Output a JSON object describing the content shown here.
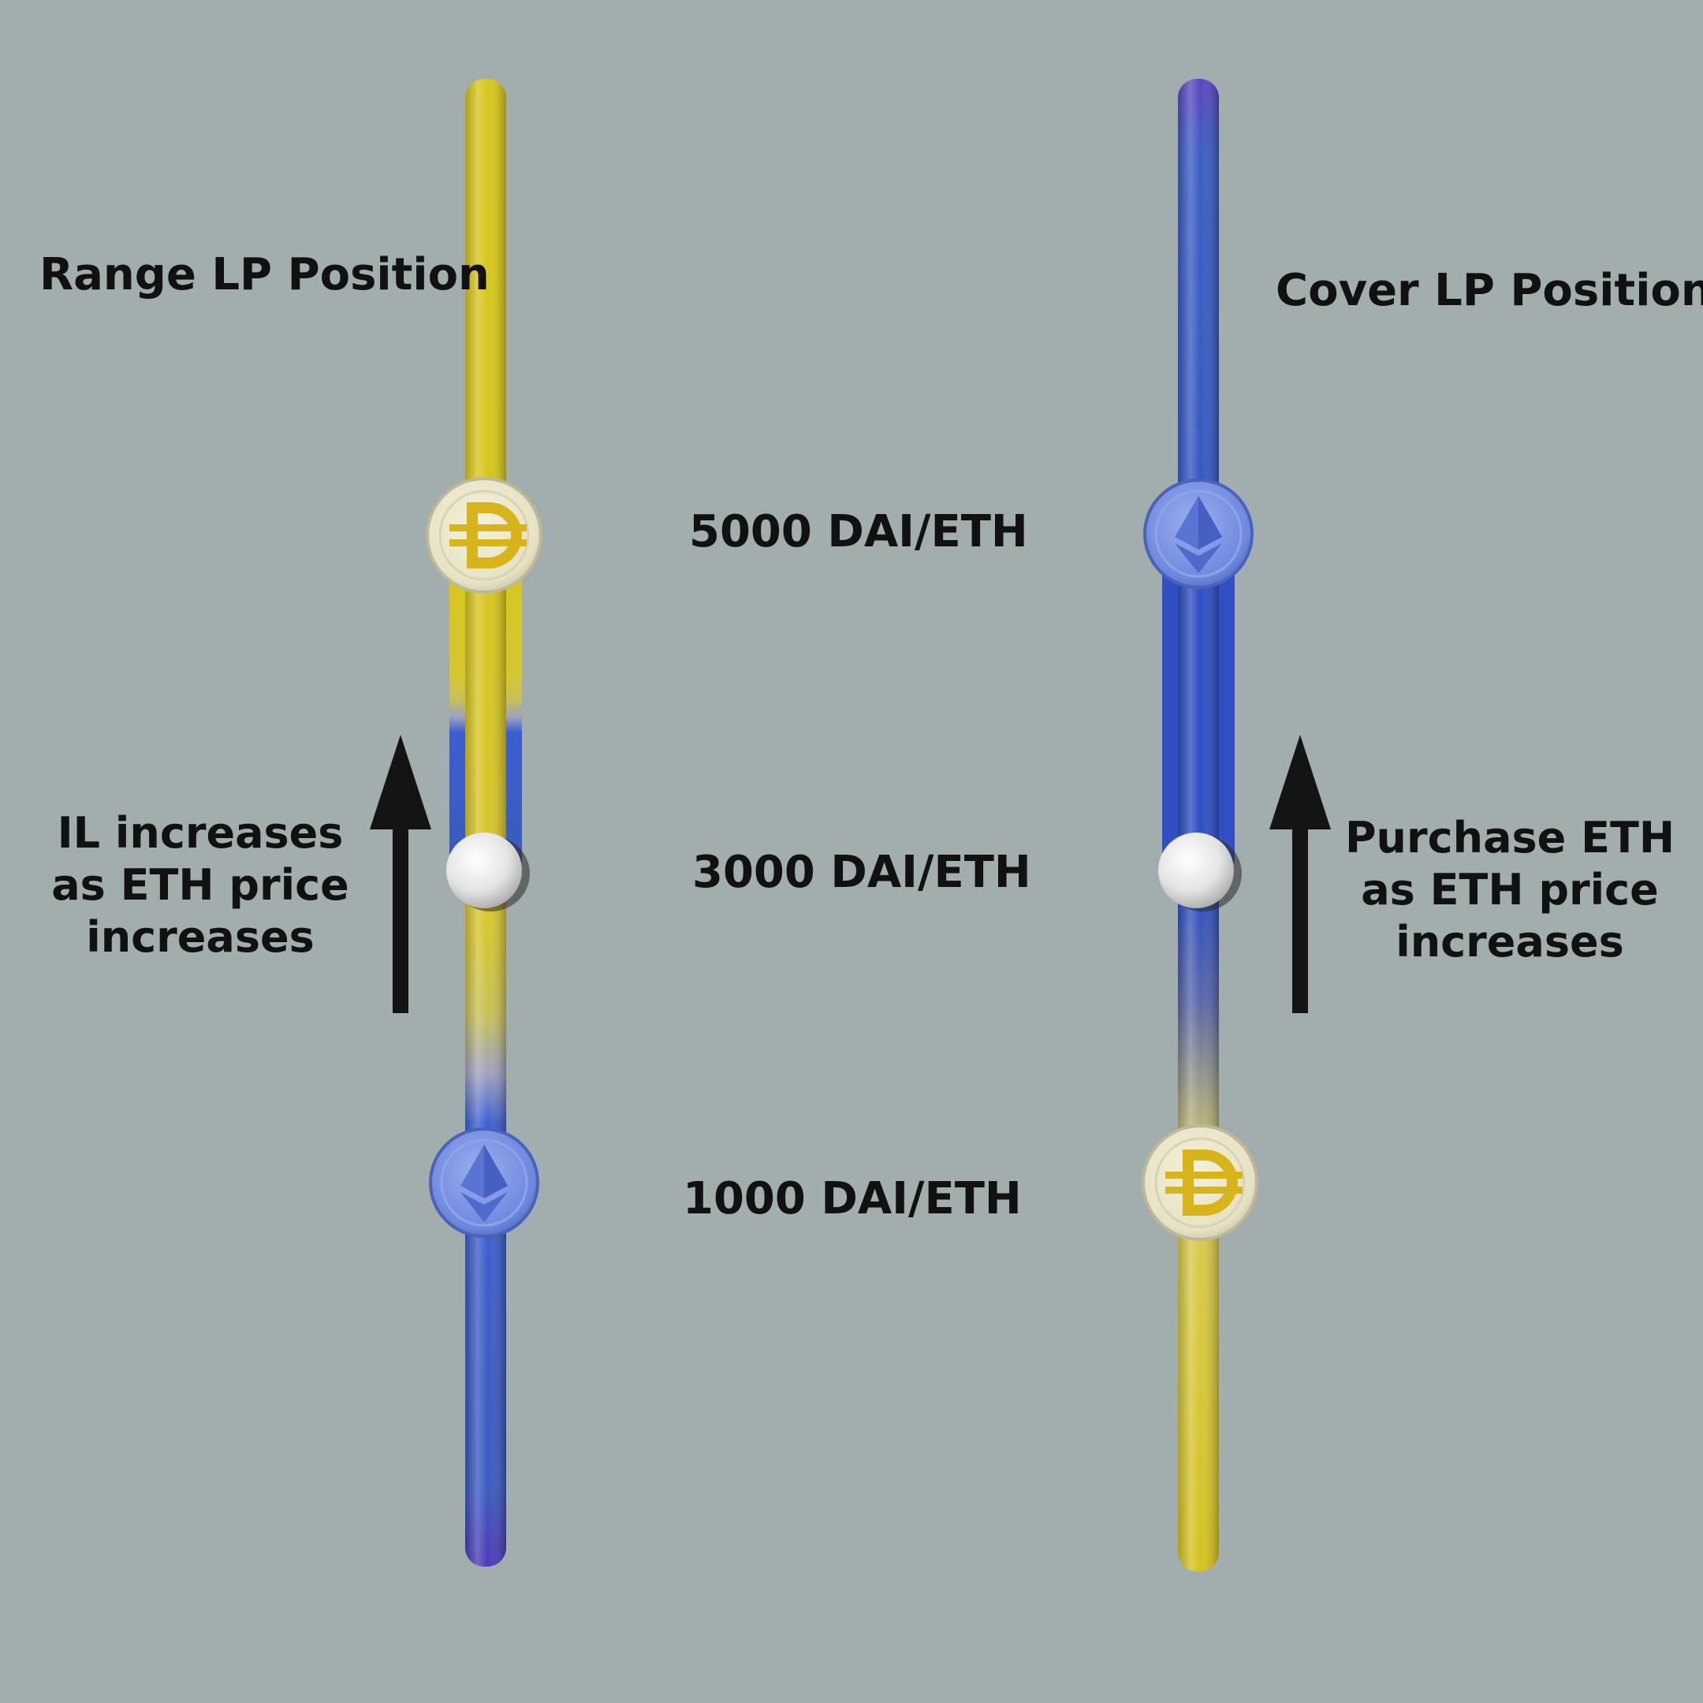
{
  "titles": {
    "range": "Range LP Position",
    "cover": "Cover LP Position"
  },
  "prices": {
    "upper": "5000 DAI/ETH",
    "mid": "3000 DAI/ETH",
    "lower": "1000 DAI/ETH"
  },
  "notes": {
    "range": [
      "IL increases",
      "as ETH price",
      "increases"
    ],
    "cover": [
      "Purchase ETH",
      "as ETH price",
      "increases"
    ]
  },
  "colors": {
    "background": "#a2adad",
    "dai_yellow": "#d9c41c",
    "eth_blue": "#3a5ec0",
    "arrow": "#141414"
  },
  "icons": [
    "dai-coin-icon",
    "eth-coin-icon",
    "price-marker-ball",
    "up-arrow-icon"
  ]
}
